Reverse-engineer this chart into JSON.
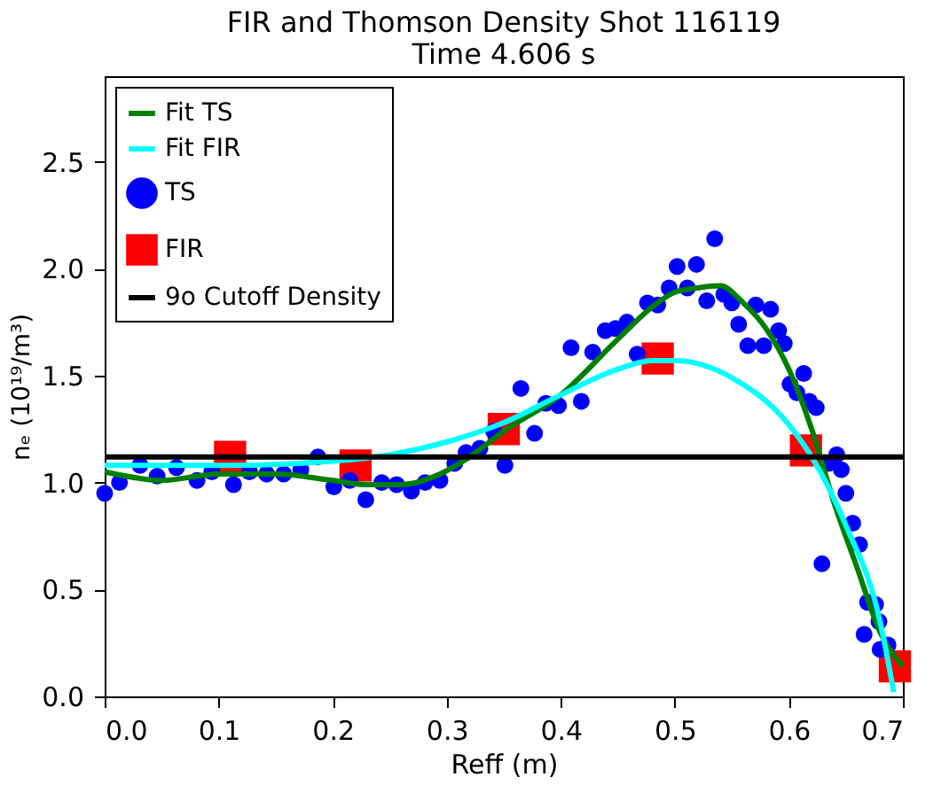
{
  "chart_data": {
    "type": "scatter",
    "title": [
      "FIR and Thomson Density Shot 116119",
      "Time 4.606 s"
    ],
    "xlabel": "Reff (m)",
    "ylabel": "nₑ (10¹⁹/m³)",
    "xlim": [
      0,
      0.7
    ],
    "ylim": [
      0,
      2.9
    ],
    "xticks": [
      {
        "value": 0,
        "label": "0.0"
      },
      0.1,
      0.2,
      0.3,
      0.4,
      0.5,
      0.6,
      0.7
    ],
    "yticks": [
      {
        "value": 0,
        "label": "0.0"
      },
      0.5,
      {
        "value": 1,
        "label": "1.0"
      },
      1.5,
      {
        "value": 2,
        "label": "2.0"
      },
      2.5
    ],
    "grid": false,
    "legend": "top left",
    "series": [
      {
        "name": "Fit TS",
        "type": "line",
        "color": "#007f00",
        "marker": "none",
        "x": [
          0,
          0.03,
          0.05,
          0.1,
          0.15,
          0.2,
          0.23,
          0.26,
          0.29,
          0.32,
          0.35,
          0.4,
          0.45,
          0.48,
          0.5,
          0.52,
          0.54,
          0.56,
          0.58,
          0.6,
          0.62,
          0.64,
          0.66,
          0.68,
          0.7
        ],
        "values": [
          1.05,
          1.02,
          1.01,
          1.04,
          1.04,
          1.01,
          0.99,
          0.99,
          1.03,
          1.12,
          1.24,
          1.41,
          1.67,
          1.82,
          1.89,
          1.91,
          1.92,
          1.84,
          1.72,
          1.53,
          1.25,
          0.9,
          0.6,
          0.3,
          0.14
        ]
      },
      {
        "name": "Fit FIR",
        "type": "line",
        "color": "#00ffff",
        "marker": "none",
        "x": [
          0,
          0.1,
          0.2,
          0.25,
          0.3,
          0.35,
          0.4,
          0.45,
          0.48,
          0.5,
          0.55,
          0.6,
          0.62,
          0.65,
          0.68,
          0.692
        ],
        "values": [
          1.08,
          1.08,
          1.1,
          1.13,
          1.19,
          1.28,
          1.41,
          1.53,
          1.57,
          1.57,
          1.49,
          1.27,
          1.12,
          0.8,
          0.35,
          0.02
        ]
      },
      {
        "name": "TS",
        "color": "#0000ff",
        "marker": "circle",
        "x": [
          0.0,
          0.013,
          0.031,
          0.046,
          0.063,
          0.081,
          0.094,
          0.113,
          0.127,
          0.142,
          0.157,
          0.172,
          0.187,
          0.201,
          0.215,
          0.229,
          0.243,
          0.256,
          0.269,
          0.281,
          0.294,
          0.307,
          0.317,
          0.329,
          0.341,
          0.351,
          0.365,
          0.377,
          0.387,
          0.398,
          0.409,
          0.418,
          0.428,
          0.439,
          0.448,
          0.458,
          0.467,
          0.476,
          0.485,
          0.495,
          0.502,
          0.511,
          0.519,
          0.528,
          0.535,
          0.543,
          0.55,
          0.556,
          0.564,
          0.571,
          0.578,
          0.584,
          0.591,
          0.596,
          0.601,
          0.607,
          0.613,
          0.618,
          0.624,
          0.629,
          0.635,
          0.642,
          0.646,
          0.65,
          0.656,
          0.662,
          0.666,
          0.669,
          0.676,
          0.679,
          0.68,
          0.687
        ],
        "values": [
          0.95,
          1.0,
          1.08,
          1.03,
          1.07,
          1.01,
          1.05,
          0.99,
          1.05,
          1.04,
          1.04,
          1.06,
          1.12,
          0.98,
          1.01,
          0.92,
          1.0,
          0.99,
          0.96,
          1.0,
          1.01,
          1.09,
          1.14,
          1.16,
          1.24,
          1.08,
          1.44,
          1.23,
          1.37,
          1.36,
          1.63,
          1.38,
          1.61,
          1.71,
          1.72,
          1.75,
          1.6,
          1.84,
          1.83,
          1.91,
          2.01,
          1.91,
          2.02,
          1.85,
          2.14,
          1.88,
          1.84,
          1.74,
          1.64,
          1.83,
          1.64,
          1.81,
          1.71,
          1.65,
          1.46,
          1.42,
          1.51,
          1.38,
          1.35,
          0.62,
          1.09,
          1.13,
          1.06,
          0.95,
          0.81,
          0.71,
          0.29,
          0.44,
          0.43,
          0.35,
          0.22,
          0.24
        ]
      },
      {
        "name": "FIR",
        "color": "#ff0000",
        "marker": "square",
        "x": [
          0.11,
          0.22,
          0.35,
          0.485,
          0.615,
          0.693
        ],
        "values": [
          1.12,
          1.08,
          1.25,
          1.58,
          1.15,
          0.14
        ]
      }
    ],
    "ref_lines": [
      {
        "axis": "y",
        "value": 1.12,
        "label": "9o Cutoff Density",
        "color": "#000000",
        "line_style": "solid"
      }
    ]
  }
}
